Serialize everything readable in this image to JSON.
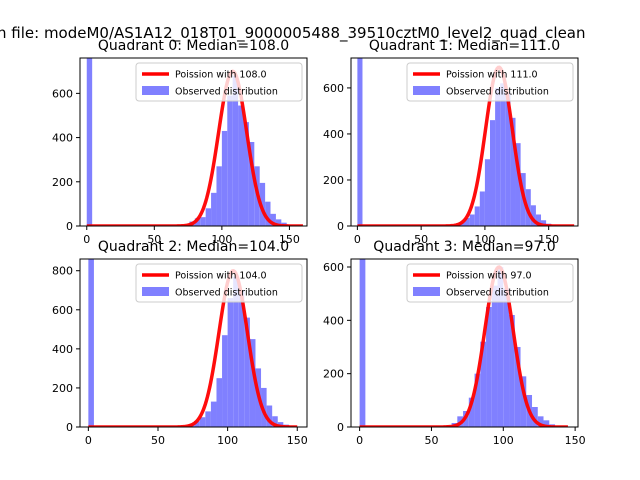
{
  "figure": {
    "suptitle": "n file: modeM0/AS1A12_018T01_9000005488_39510cztM0_level2_quad_clean"
  },
  "colors": {
    "hist_fill": "#8080ff",
    "poisson_line": "#ff0000",
    "axes": "#000000"
  },
  "chart_data": [
    {
      "type": "bar",
      "title": "Quadrant 0: Median=108.0",
      "legend_position": "top-right",
      "grid": false,
      "xlim": [
        -5,
        163
      ],
      "ylim": [
        0,
        760
      ],
      "xticks": [
        0,
        50,
        100,
        150
      ],
      "yticks": [
        0,
        200,
        400,
        600
      ],
      "series": [
        {
          "name": "Poission with 108.0",
          "kind": "line",
          "mu": 108,
          "peak": 700,
          "x_range": [
            0,
            160
          ]
        },
        {
          "name": "Observed distribution",
          "kind": "histogram",
          "bin_width": 4,
          "bin_starts": [
            0,
            72,
            76,
            80,
            84,
            88,
            92,
            96,
            100,
            104,
            108,
            112,
            116,
            120,
            124,
            128,
            132,
            136,
            140,
            144,
            148
          ],
          "values": [
            760,
            5,
            20,
            35,
            40,
            80,
            150,
            270,
            430,
            590,
            680,
            545,
            470,
            380,
            270,
            195,
            110,
            55,
            30,
            15,
            5
          ]
        }
      ]
    },
    {
      "type": "bar",
      "title": "Quadrant 1: Median=111.0",
      "legend_position": "top-right",
      "grid": false,
      "xlim": [
        -5,
        173
      ],
      "ylim": [
        0,
        730
      ],
      "xticks": [
        0,
        50,
        100,
        150
      ],
      "yticks": [
        0,
        200,
        400,
        600
      ],
      "series": [
        {
          "name": "Poission with 111.0",
          "kind": "line",
          "mu": 111,
          "peak": 690,
          "x_range": [
            0,
            170
          ]
        },
        {
          "name": "Observed distribution",
          "kind": "histogram",
          "bin_width": 4,
          "bin_starts": [
            0,
            76,
            80,
            84,
            88,
            92,
            96,
            100,
            104,
            108,
            112,
            116,
            120,
            124,
            128,
            132,
            136,
            140,
            144,
            148,
            152
          ],
          "values": [
            730,
            5,
            15,
            35,
            50,
            85,
            150,
            290,
            460,
            600,
            620,
            580,
            470,
            360,
            230,
            160,
            90,
            50,
            25,
            10,
            5
          ]
        }
      ]
    },
    {
      "type": "bar",
      "title": "Quadrant 2: Median=104.0",
      "legend_position": "top-right",
      "grid": false,
      "xlim": [
        -6,
        157
      ],
      "ylim": [
        0,
        860
      ],
      "xticks": [
        0,
        50,
        100,
        150
      ],
      "yticks": [
        0,
        200,
        400,
        600,
        800
      ],
      "series": [
        {
          "name": "Poission with 104.0",
          "kind": "line",
          "mu": 104,
          "peak": 800,
          "x_range": [
            0,
            150
          ]
        },
        {
          "name": "Observed distribution",
          "kind": "histogram",
          "bin_width": 4,
          "bin_starts": [
            0,
            68,
            72,
            76,
            80,
            84,
            88,
            92,
            96,
            100,
            104,
            108,
            112,
            116,
            120,
            124,
            128,
            132,
            136,
            140,
            144
          ],
          "values": [
            860,
            5,
            15,
            30,
            50,
            80,
            130,
            250,
            470,
            660,
            770,
            700,
            560,
            450,
            300,
            200,
            110,
            55,
            25,
            12,
            5
          ]
        }
      ]
    },
    {
      "type": "bar",
      "title": "Quadrant 3: Median=97.0",
      "legend_position": "top-right",
      "grid": false,
      "xlim": [
        -6,
        152
      ],
      "ylim": [
        0,
        630
      ],
      "xticks": [
        0,
        50,
        100,
        150
      ],
      "yticks": [
        0,
        200,
        400,
        600
      ],
      "series": [
        {
          "name": "Poission with 97.0",
          "kind": "line",
          "mu": 97,
          "peak": 600,
          "x_range": [
            0,
            145
          ]
        },
        {
          "name": "Observed distribution",
          "kind": "histogram",
          "bin_width": 4,
          "bin_starts": [
            0,
            60,
            64,
            68,
            72,
            76,
            80,
            84,
            88,
            92,
            96,
            100,
            104,
            108,
            112,
            116,
            120,
            124,
            128,
            132
          ],
          "values": [
            630,
            5,
            15,
            40,
            60,
            110,
            200,
            320,
            450,
            530,
            600,
            520,
            420,
            300,
            190,
            120,
            75,
            40,
            25,
            10
          ]
        }
      ]
    }
  ]
}
